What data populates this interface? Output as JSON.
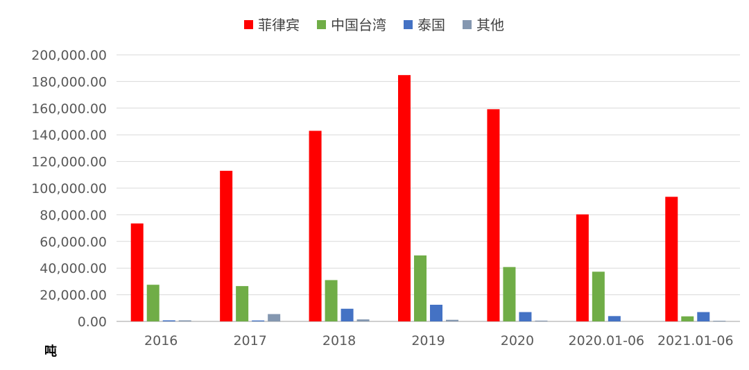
{
  "chart_data": {
    "type": "bar",
    "categories": [
      "2016",
      "2017",
      "2018",
      "2019",
      "2020",
      "2020.01-06",
      "2021.01-06"
    ],
    "series": [
      {
        "name": "菲律宾",
        "color": "#ff0000",
        "values": [
          73500,
          113000,
          143000,
          184800,
          159200,
          80300,
          93500
        ]
      },
      {
        "name": "中国台湾",
        "color": "#70ad47",
        "values": [
          27500,
          26500,
          31000,
          49500,
          40800,
          37300,
          3800
        ]
      },
      {
        "name": "泰国",
        "color": "#4472c4",
        "values": [
          800,
          700,
          9500,
          12500,
          7000,
          4000,
          7000
        ]
      },
      {
        "name": "其他",
        "color": "#8497b0",
        "values": [
          800,
          5500,
          1500,
          1200,
          600,
          0,
          500
        ]
      }
    ],
    "ylim": [
      0,
      200000
    ],
    "yticks": [
      "0.00",
      "20,000.00",
      "40,000.00",
      "60,000.00",
      "80,000.00",
      "100,000.00",
      "120,000.00",
      "140,000.00",
      "160,000.00",
      "180,000.00",
      "200,000.00"
    ],
    "ytick_values": [
      0,
      20000,
      40000,
      60000,
      80000,
      100000,
      120000,
      140000,
      160000,
      180000,
      200000
    ],
    "unit_label": "吨",
    "grid": true,
    "legend_position": "top-center"
  }
}
